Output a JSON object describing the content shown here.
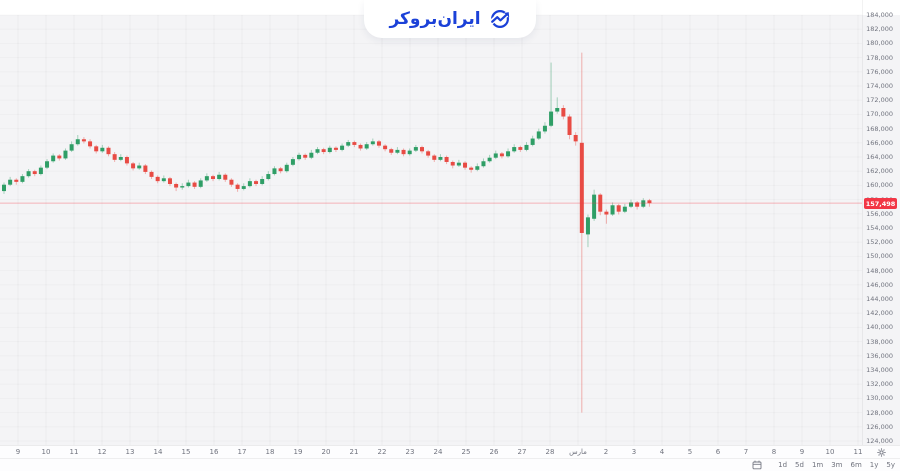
{
  "brand": {
    "name": "ایران‌بروکر",
    "accent_color": "#1b41d8",
    "icon": "trend-circle-icon"
  },
  "chart_data": {
    "type": "candlestick",
    "x_day_labels": [
      "9",
      "10",
      "11",
      "12",
      "13",
      "14",
      "15",
      "16",
      "17",
      "18",
      "19",
      "20",
      "21",
      "22",
      "23",
      "24",
      "25",
      "26",
      "27",
      "28",
      "مارس",
      "2",
      "3",
      "4",
      "5",
      "6",
      "7",
      "8",
      "9",
      "10",
      "11"
    ],
    "y_axis": {
      "min": 124000,
      "max": 184000,
      "step": 2000
    },
    "current_price": {
      "value": 157498,
      "label": "157,498"
    },
    "colors": {
      "up": "#2f9e66",
      "down": "#e84b44",
      "price_line": "#f23645",
      "axis_text": "#70737e",
      "background": "#f4f4f6"
    },
    "legend": "none",
    "grid": "faint",
    "candles": [
      [
        159200,
        160400,
        158800,
        160100
      ],
      [
        160100,
        161200,
        159900,
        160800
      ],
      [
        160800,
        161000,
        160100,
        160500
      ],
      [
        160500,
        161600,
        160300,
        161300
      ],
      [
        161300,
        162300,
        161100,
        162000
      ],
      [
        162000,
        162200,
        161300,
        161600
      ],
      [
        161600,
        162800,
        161400,
        162500
      ],
      [
        162500,
        163700,
        162300,
        163400
      ],
      [
        163400,
        164500,
        163200,
        164200
      ],
      [
        164200,
        164400,
        163500,
        163800
      ],
      [
        163800,
        165200,
        163600,
        164900
      ],
      [
        164900,
        166200,
        164700,
        165800
      ],
      [
        165800,
        167100,
        165600,
        166500
      ],
      [
        166500,
        166800,
        165900,
        166200
      ],
      [
        166200,
        166500,
        165200,
        165500
      ],
      [
        165500,
        165700,
        164500,
        164800
      ],
      [
        164800,
        165700,
        164600,
        165300
      ],
      [
        165300,
        165500,
        164100,
        164400
      ],
      [
        164400,
        164700,
        163300,
        163600
      ],
      [
        163600,
        164400,
        163400,
        164000
      ],
      [
        164000,
        164200,
        162800,
        163100
      ],
      [
        163100,
        163300,
        162100,
        162400
      ],
      [
        162400,
        163200,
        162200,
        162800
      ],
      [
        162800,
        163000,
        161600,
        161900
      ],
      [
        161900,
        162100,
        160900,
        161200
      ],
      [
        161200,
        161400,
        160300,
        160600
      ],
      [
        160600,
        161400,
        160400,
        161000
      ],
      [
        161000,
        161200,
        159900,
        160200
      ],
      [
        160200,
        160400,
        159200,
        159700
      ],
      [
        159700,
        160300,
        159400,
        159900
      ],
      [
        159900,
        160800,
        159700,
        160400
      ],
      [
        160400,
        160600,
        159500,
        159800
      ],
      [
        159800,
        161000,
        159600,
        160700
      ],
      [
        160700,
        161700,
        160500,
        161300
      ],
      [
        161300,
        161500,
        160600,
        160900
      ],
      [
        160900,
        161900,
        160700,
        161500
      ],
      [
        161500,
        161700,
        160500,
        160800
      ],
      [
        160800,
        161000,
        159800,
        160100
      ],
      [
        160100,
        160300,
        159100,
        159500
      ],
      [
        159500,
        160300,
        159300,
        159900
      ],
      [
        159900,
        161000,
        159700,
        160600
      ],
      [
        160600,
        160800,
        159900,
        160200
      ],
      [
        160200,
        161300,
        160000,
        160900
      ],
      [
        160900,
        162000,
        160700,
        161600
      ],
      [
        161600,
        162700,
        161400,
        162400
      ],
      [
        162400,
        162600,
        161700,
        162000
      ],
      [
        162000,
        163200,
        161800,
        162900
      ],
      [
        162900,
        164000,
        162700,
        163700
      ],
      [
        163700,
        164600,
        163500,
        164300
      ],
      [
        164300,
        164500,
        163600,
        163900
      ],
      [
        163900,
        165000,
        163700,
        164600
      ],
      [
        164600,
        165400,
        164400,
        165100
      ],
      [
        165100,
        165300,
        164400,
        164700
      ],
      [
        164700,
        165600,
        164500,
        165300
      ],
      [
        165300,
        165500,
        164700,
        165000
      ],
      [
        165000,
        165900,
        164800,
        165600
      ],
      [
        165600,
        166400,
        165400,
        166100
      ],
      [
        166100,
        166300,
        165400,
        165700
      ],
      [
        165700,
        165900,
        164900,
        165200
      ],
      [
        165200,
        166100,
        165000,
        165800
      ],
      [
        165800,
        166600,
        165600,
        166200
      ],
      [
        166200,
        166400,
        165300,
        165600
      ],
      [
        165600,
        165800,
        164800,
        165100
      ],
      [
        165100,
        165300,
        164300,
        164600
      ],
      [
        164600,
        165400,
        164400,
        165000
      ],
      [
        165000,
        165200,
        164100,
        164400
      ],
      [
        164400,
        165200,
        164200,
        164900
      ],
      [
        164900,
        165700,
        164700,
        165400
      ],
      [
        165400,
        165600,
        164500,
        164800
      ],
      [
        164800,
        165000,
        163900,
        164200
      ],
      [
        164200,
        164400,
        163300,
        163600
      ],
      [
        163600,
        164400,
        163400,
        164000
      ],
      [
        164000,
        164200,
        163000,
        163300
      ],
      [
        163300,
        163500,
        162400,
        162800
      ],
      [
        162800,
        163600,
        162600,
        163200
      ],
      [
        163200,
        163400,
        162200,
        162500
      ],
      [
        162500,
        162700,
        161800,
        162200
      ],
      [
        162200,
        163100,
        162000,
        162700
      ],
      [
        162700,
        163800,
        162500,
        163400
      ],
      [
        163400,
        164300,
        163200,
        163900
      ],
      [
        163900,
        164900,
        163700,
        164500
      ],
      [
        164500,
        164700,
        163800,
        164100
      ],
      [
        164100,
        165200,
        163900,
        164800
      ],
      [
        164800,
        165800,
        164600,
        165400
      ],
      [
        165400,
        165600,
        164700,
        165000
      ],
      [
        165000,
        166100,
        164800,
        165700
      ],
      [
        165700,
        167000,
        165500,
        166600
      ],
      [
        166600,
        168000,
        166400,
        167600
      ],
      [
        167600,
        168900,
        167300,
        168400
      ],
      [
        168400,
        177300,
        168200,
        170400
      ],
      [
        170400,
        172400,
        170100,
        170900
      ],
      [
        170900,
        171300,
        169300,
        169700
      ],
      [
        169700,
        170000,
        166500,
        167100
      ],
      [
        167100,
        167500,
        165600,
        166200
      ],
      [
        166000,
        178700,
        128000,
        153300
      ],
      [
        153100,
        155900,
        151300,
        155500
      ],
      [
        155300,
        159400,
        155000,
        158700
      ],
      [
        158700,
        158900,
        155800,
        156300
      ],
      [
        156300,
        156600,
        154600,
        155900
      ],
      [
        155900,
        157600,
        155700,
        157200
      ],
      [
        157200,
        157400,
        155900,
        156300
      ],
      [
        156300,
        157400,
        156100,
        157000
      ],
      [
        157000,
        158000,
        156800,
        157600
      ],
      [
        157600,
        157800,
        156600,
        157000
      ],
      [
        157000,
        158200,
        156800,
        157900
      ],
      [
        157900,
        158100,
        157000,
        157500
      ]
    ]
  },
  "bottom_toolbar": {
    "timeframes": [
      "1d",
      "5d",
      "1m",
      "3m",
      "6m",
      "1y",
      "5y"
    ],
    "calendar_icon": "calendar-icon",
    "gear_icon": "gear-icon"
  }
}
